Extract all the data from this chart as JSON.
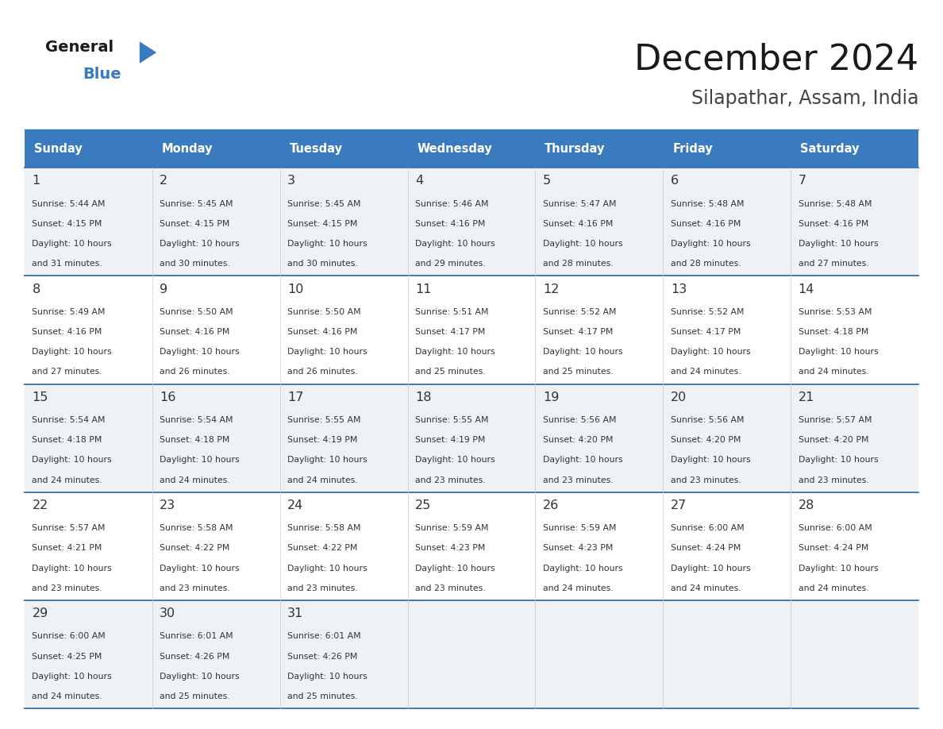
{
  "title": "December 2024",
  "subtitle": "Silapathar, Assam, India",
  "header_bg_color": "#3a7bbf",
  "header_text_color": "#ffffff",
  "row_bg_even": "#eef2f7",
  "row_bg_odd": "#ffffff",
  "day_headers": [
    "Sunday",
    "Monday",
    "Tuesday",
    "Wednesday",
    "Thursday",
    "Friday",
    "Saturday"
  ],
  "title_color": "#1a1a1a",
  "subtitle_color": "#444444",
  "cell_text_color": "#333333",
  "divider_color": "#3a7bbf",
  "logo_general_color": "#1a1a1a",
  "logo_blue_color": "#3a7bbf",
  "logo_triangle_color": "#3a7bbf",
  "calendar_data": [
    [
      {
        "day": 1,
        "sunrise": "5:44 AM",
        "sunset": "4:15 PM",
        "daylight_hours": 10,
        "daylight_minutes": 31
      },
      {
        "day": 2,
        "sunrise": "5:45 AM",
        "sunset": "4:15 PM",
        "daylight_hours": 10,
        "daylight_minutes": 30
      },
      {
        "day": 3,
        "sunrise": "5:45 AM",
        "sunset": "4:15 PM",
        "daylight_hours": 10,
        "daylight_minutes": 30
      },
      {
        "day": 4,
        "sunrise": "5:46 AM",
        "sunset": "4:16 PM",
        "daylight_hours": 10,
        "daylight_minutes": 29
      },
      {
        "day": 5,
        "sunrise": "5:47 AM",
        "sunset": "4:16 PM",
        "daylight_hours": 10,
        "daylight_minutes": 28
      },
      {
        "day": 6,
        "sunrise": "5:48 AM",
        "sunset": "4:16 PM",
        "daylight_hours": 10,
        "daylight_minutes": 28
      },
      {
        "day": 7,
        "sunrise": "5:48 AM",
        "sunset": "4:16 PM",
        "daylight_hours": 10,
        "daylight_minutes": 27
      }
    ],
    [
      {
        "day": 8,
        "sunrise": "5:49 AM",
        "sunset": "4:16 PM",
        "daylight_hours": 10,
        "daylight_minutes": 27
      },
      {
        "day": 9,
        "sunrise": "5:50 AM",
        "sunset": "4:16 PM",
        "daylight_hours": 10,
        "daylight_minutes": 26
      },
      {
        "day": 10,
        "sunrise": "5:50 AM",
        "sunset": "4:16 PM",
        "daylight_hours": 10,
        "daylight_minutes": 26
      },
      {
        "day": 11,
        "sunrise": "5:51 AM",
        "sunset": "4:17 PM",
        "daylight_hours": 10,
        "daylight_minutes": 25
      },
      {
        "day": 12,
        "sunrise": "5:52 AM",
        "sunset": "4:17 PM",
        "daylight_hours": 10,
        "daylight_minutes": 25
      },
      {
        "day": 13,
        "sunrise": "5:52 AM",
        "sunset": "4:17 PM",
        "daylight_hours": 10,
        "daylight_minutes": 24
      },
      {
        "day": 14,
        "sunrise": "5:53 AM",
        "sunset": "4:18 PM",
        "daylight_hours": 10,
        "daylight_minutes": 24
      }
    ],
    [
      {
        "day": 15,
        "sunrise": "5:54 AM",
        "sunset": "4:18 PM",
        "daylight_hours": 10,
        "daylight_minutes": 24
      },
      {
        "day": 16,
        "sunrise": "5:54 AM",
        "sunset": "4:18 PM",
        "daylight_hours": 10,
        "daylight_minutes": 24
      },
      {
        "day": 17,
        "sunrise": "5:55 AM",
        "sunset": "4:19 PM",
        "daylight_hours": 10,
        "daylight_minutes": 24
      },
      {
        "day": 18,
        "sunrise": "5:55 AM",
        "sunset": "4:19 PM",
        "daylight_hours": 10,
        "daylight_minutes": 23
      },
      {
        "day": 19,
        "sunrise": "5:56 AM",
        "sunset": "4:20 PM",
        "daylight_hours": 10,
        "daylight_minutes": 23
      },
      {
        "day": 20,
        "sunrise": "5:56 AM",
        "sunset": "4:20 PM",
        "daylight_hours": 10,
        "daylight_minutes": 23
      },
      {
        "day": 21,
        "sunrise": "5:57 AM",
        "sunset": "4:20 PM",
        "daylight_hours": 10,
        "daylight_minutes": 23
      }
    ],
    [
      {
        "day": 22,
        "sunrise": "5:57 AM",
        "sunset": "4:21 PM",
        "daylight_hours": 10,
        "daylight_minutes": 23
      },
      {
        "day": 23,
        "sunrise": "5:58 AM",
        "sunset": "4:22 PM",
        "daylight_hours": 10,
        "daylight_minutes": 23
      },
      {
        "day": 24,
        "sunrise": "5:58 AM",
        "sunset": "4:22 PM",
        "daylight_hours": 10,
        "daylight_minutes": 23
      },
      {
        "day": 25,
        "sunrise": "5:59 AM",
        "sunset": "4:23 PM",
        "daylight_hours": 10,
        "daylight_minutes": 23
      },
      {
        "day": 26,
        "sunrise": "5:59 AM",
        "sunset": "4:23 PM",
        "daylight_hours": 10,
        "daylight_minutes": 24
      },
      {
        "day": 27,
        "sunrise": "6:00 AM",
        "sunset": "4:24 PM",
        "daylight_hours": 10,
        "daylight_minutes": 24
      },
      {
        "day": 28,
        "sunrise": "6:00 AM",
        "sunset": "4:24 PM",
        "daylight_hours": 10,
        "daylight_minutes": 24
      }
    ],
    [
      {
        "day": 29,
        "sunrise": "6:00 AM",
        "sunset": "4:25 PM",
        "daylight_hours": 10,
        "daylight_minutes": 24
      },
      {
        "day": 30,
        "sunrise": "6:01 AM",
        "sunset": "4:26 PM",
        "daylight_hours": 10,
        "daylight_minutes": 25
      },
      {
        "day": 31,
        "sunrise": "6:01 AM",
        "sunset": "4:26 PM",
        "daylight_hours": 10,
        "daylight_minutes": 25
      },
      null,
      null,
      null,
      null
    ]
  ]
}
